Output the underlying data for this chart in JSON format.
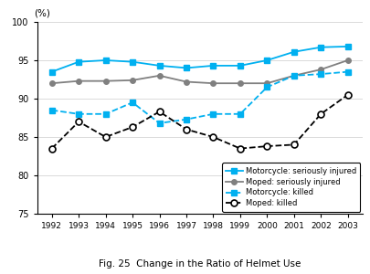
{
  "years": [
    1992,
    1993,
    1994,
    1995,
    1996,
    1997,
    1998,
    1999,
    2000,
    2001,
    2002,
    2003
  ],
  "motorcycle_seriously_injured": [
    93.5,
    94.8,
    95.0,
    94.8,
    94.3,
    94.0,
    94.3,
    94.3,
    95.0,
    96.1,
    96.7,
    96.8
  ],
  "moped_seriously_injured": [
    92.0,
    92.3,
    92.3,
    92.4,
    93.0,
    92.2,
    92.0,
    92.0,
    92.0,
    93.0,
    93.8,
    95.0
  ],
  "motorcycle_killed": [
    88.5,
    88.0,
    88.0,
    89.5,
    86.8,
    87.3,
    88.0,
    88.0,
    91.5,
    93.0,
    93.2,
    93.5
  ],
  "moped_killed": [
    83.5,
    87.0,
    85.0,
    86.3,
    88.3,
    86.0,
    85.0,
    83.5,
    83.8,
    84.0,
    88.0,
    90.5
  ],
  "ylim": [
    75,
    100
  ],
  "yticks": [
    75,
    80,
    85,
    90,
    95,
    100
  ],
  "ylabel": "(%)",
  "title": "Fig. 25  Change in the Ratio of Helmet Use",
  "line1_color": "#00b0f0",
  "line2_color": "#808080",
  "line3_color": "#00b0f0",
  "line4_color": "#000000",
  "legend_labels": [
    "Motorcycle: seriously injured",
    "Moped: seriously injured",
    "Motorcycle: killed",
    "Moped: killed"
  ]
}
